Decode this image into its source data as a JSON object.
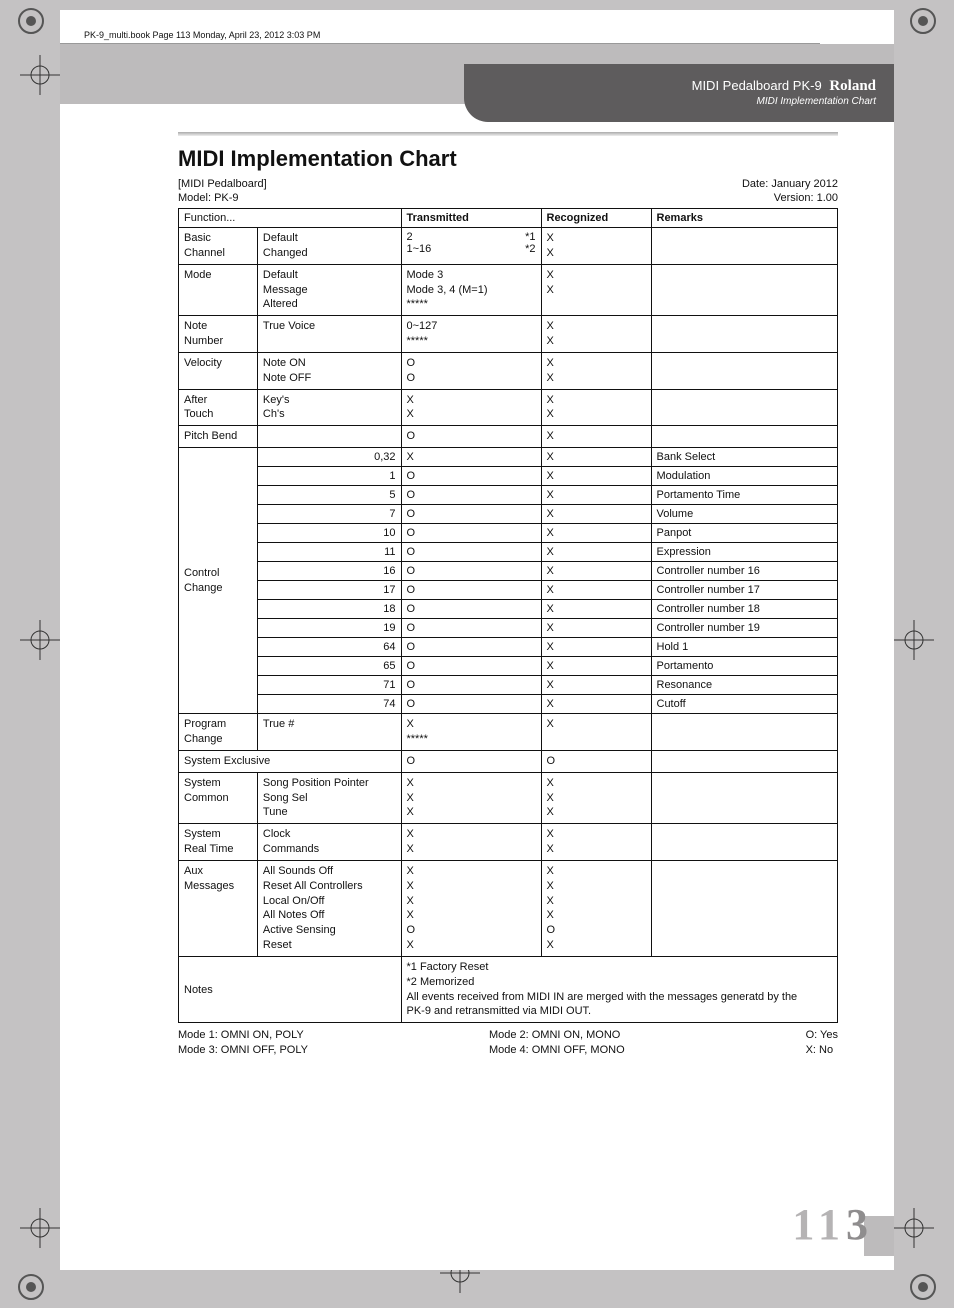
{
  "topTag": "PK-9_multi.book  Page 113  Monday, April 23, 2012  3:03 PM",
  "tab": {
    "product": "MIDI Pedalboard PK-9",
    "brand": "Roland",
    "subtitle": "MIDI Implementation Chart"
  },
  "title": "MIDI Implementation Chart",
  "metaLeft1": "[MIDI Pedalboard]",
  "metaLeft2": "Model: PK-9",
  "metaRight1": "Date: January 2012",
  "metaRight2": "Version: 1.00",
  "headers": {
    "function": "Function...",
    "transmitted": "Transmitted",
    "recognized": "Recognized",
    "remarks": "Remarks"
  },
  "rows": [
    {
      "fn": [
        "Basic",
        "Channel"
      ],
      "sub": [
        "Default",
        "Changed"
      ],
      "txSplit": [
        [
          "2",
          "*1"
        ],
        [
          "1~16",
          "*2"
        ]
      ],
      "rx": [
        "X",
        "X"
      ],
      "rm": []
    },
    {
      "fn": [
        "Mode"
      ],
      "sub": [
        "Default",
        "Message",
        "Altered"
      ],
      "tx": [
        "Mode 3",
        "Mode 3, 4 (M=1)",
        "*****"
      ],
      "rx": [
        "X",
        "X"
      ],
      "rm": []
    },
    {
      "fn": [
        "Note",
        "Number"
      ],
      "sub": [
        "",
        "True Voice"
      ],
      "tx": [
        "0~127",
        "*****"
      ],
      "rx": [
        "X",
        "X"
      ],
      "rm": []
    },
    {
      "fn": [
        "Velocity"
      ],
      "sub": [
        "Note ON",
        "Note OFF"
      ],
      "tx": [
        "O",
        "O"
      ],
      "rx": [
        "X",
        "X"
      ],
      "rm": []
    },
    {
      "fn": [
        "After",
        "Touch"
      ],
      "sub": [
        "Key's",
        "Ch's"
      ],
      "tx": [
        "X",
        "X"
      ],
      "rx": [
        "X",
        "X"
      ],
      "rm": []
    },
    {
      "fn": [
        "Pitch Bend"
      ],
      "sub": [],
      "tx": [
        "O"
      ],
      "rx": [
        "X"
      ],
      "rm": []
    }
  ],
  "cc": {
    "fn": [
      "Control",
      "Change"
    ],
    "items": [
      {
        "no": "0,32",
        "tx": "X",
        "rx": "X",
        "rm": "Bank Select"
      },
      {
        "no": "1",
        "tx": "O",
        "rx": "X",
        "rm": "Modulation"
      },
      {
        "no": "5",
        "tx": "O",
        "rx": "X",
        "rm": "Portamento Time"
      },
      {
        "no": "7",
        "tx": "O",
        "rx": "X",
        "rm": "Volume"
      },
      {
        "no": "10",
        "tx": "O",
        "rx": "X",
        "rm": "Panpot"
      },
      {
        "no": "11",
        "tx": "O",
        "rx": "X",
        "rm": "Expression"
      },
      {
        "no": "16",
        "tx": "O",
        "rx": "X",
        "rm": "Controller number 16"
      },
      {
        "no": "17",
        "tx": "O",
        "rx": "X",
        "rm": "Controller number 17"
      },
      {
        "no": "18",
        "tx": "O",
        "rx": "X",
        "rm": "Controller number 18"
      },
      {
        "no": "19",
        "tx": "O",
        "rx": "X",
        "rm": "Controller number 19"
      },
      {
        "no": "64",
        "tx": "O",
        "rx": "X",
        "rm": "Hold 1"
      },
      {
        "no": "65",
        "tx": "O",
        "rx": "X",
        "rm": "Portamento"
      },
      {
        "no": "71",
        "tx": "O",
        "rx": "X",
        "rm": "Resonance"
      },
      {
        "no": "74",
        "tx": "O",
        "rx": "X",
        "rm": "Cutoff"
      }
    ]
  },
  "rows2": [
    {
      "fn": [
        "Program",
        "Change"
      ],
      "sub": [
        "",
        "True #"
      ],
      "tx": [
        "X",
        "*****"
      ],
      "rx": [
        "X"
      ],
      "rm": []
    },
    {
      "fn": [
        "System Exclusive"
      ],
      "colspan": true,
      "tx": [
        "O"
      ],
      "rx": [
        "O"
      ],
      "rm": []
    },
    {
      "fn": [
        "System",
        "Common"
      ],
      "sub": [
        "Song Position Pointer",
        "Song Sel",
        "Tune"
      ],
      "tx": [
        "X",
        "X",
        "X"
      ],
      "rx": [
        "X",
        "X",
        "X"
      ],
      "rm": []
    },
    {
      "fn": [
        "System",
        "Real Time"
      ],
      "sub": [
        "Clock",
        "Commands"
      ],
      "tx": [
        "X",
        "X"
      ],
      "rx": [
        "X",
        "X"
      ],
      "rm": []
    },
    {
      "fn": [
        "Aux",
        "Messages"
      ],
      "sub": [
        "All Sounds Off",
        "Reset All Controllers",
        "Local On/Off",
        "All Notes Off",
        "Active Sensing",
        "Reset"
      ],
      "tx": [
        "X",
        "X",
        "X",
        "X",
        "O",
        "X"
      ],
      "rx": [
        "X",
        "X",
        "X",
        "X",
        "O",
        "X"
      ],
      "rm": []
    }
  ],
  "notesLabel": "Notes",
  "notesText": [
    "*1 Factory Reset",
    "*2 Memorized",
    "All events received from MIDI IN are merged with the messages generatd by the",
    "PK-9 and retransmitted via MIDI OUT."
  ],
  "footer": {
    "left": [
      "Mode 1: OMNI ON, POLY",
      "Mode 3: OMNI OFF, POLY"
    ],
    "mid": [
      "Mode 2: OMNI ON, MONO",
      "Mode 4: OMNI OFF, MONO"
    ],
    "right": [
      "O: Yes",
      "X: No"
    ]
  },
  "pageNum": "113"
}
